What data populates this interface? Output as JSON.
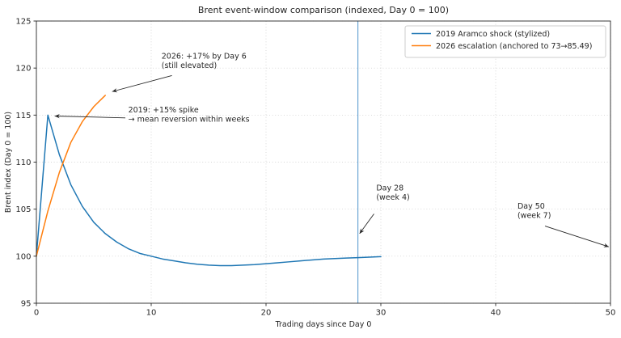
{
  "figure": {
    "title": "Brent event-window comparison (indexed, Day 0 = 100)"
  },
  "colors": {
    "series_2019": "#1f77b4",
    "series_2026": "#ff7f0e",
    "event_vline": "#5f9ed1",
    "grid": "#b5b5b5",
    "axis": "#262626",
    "legend_border": "#cccccc",
    "background": "#ffffff"
  },
  "chart_data": {
    "type": "line",
    "title": "Brent event-window comparison (indexed, Day 0 = 100)",
    "xlabel": "Trading days since Day 0",
    "ylabel": "Brent index (Day 0 = 100)",
    "xlim": [
      0,
      50
    ],
    "ylim": [
      95,
      125
    ],
    "xticks": [
      0,
      10,
      20,
      30,
      40,
      50
    ],
    "yticks": [
      95,
      100,
      105,
      110,
      115,
      120,
      125
    ],
    "grid": true,
    "legend_position": "upper right",
    "series": [
      {
        "name": "2019 Aramco shock (stylized)",
        "color": "#1f77b4",
        "x": [
          0,
          1,
          2,
          3,
          4,
          5,
          6,
          7,
          8,
          9,
          10,
          11,
          12,
          13,
          14,
          15,
          16,
          17,
          18,
          19,
          20,
          21,
          22,
          23,
          24,
          25,
          26,
          27,
          28,
          29,
          30
        ],
        "y": [
          100,
          115,
          110.8,
          107.6,
          105.3,
          103.6,
          102.4,
          101.5,
          100.8,
          100.3,
          100.0,
          99.7,
          99.5,
          99.3,
          99.15,
          99.05,
          99.0,
          99.0,
          99.05,
          99.1,
          99.2,
          99.3,
          99.4,
          99.5,
          99.6,
          99.7,
          99.75,
          99.8,
          99.85,
          99.9,
          99.95
        ]
      },
      {
        "name": "2026 escalation (anchored to 73→85.49)",
        "color": "#ff7f0e",
        "x": [
          0,
          1,
          2,
          3,
          4,
          5,
          6
        ],
        "y": [
          100,
          104.8,
          108.9,
          112.1,
          114.3,
          115.9,
          117.1
        ]
      }
    ],
    "vline": {
      "x": 28,
      "color": "#5f9ed1"
    },
    "annotations": [
      {
        "lines": [
          "2026: +17% by Day 6",
          "(still elevated)"
        ],
        "text_xy": [
          10.9,
          121.0
        ],
        "arrow_from": [
          11.8,
          119.2
        ],
        "arrow_to": [
          6.6,
          117.5
        ]
      },
      {
        "lines": [
          "2019: +15% spike",
          "→ mean reversion within weeks"
        ],
        "text_xy": [
          8.0,
          115.3
        ],
        "arrow_from": [
          7.75,
          114.7
        ],
        "arrow_to": [
          1.6,
          114.9
        ]
      },
      {
        "lines": [
          "Day 28",
          "(week 4)"
        ],
        "text_xy": [
          29.6,
          107.0
        ],
        "arrow_from": [
          29.4,
          104.5
        ],
        "arrow_to": [
          28.15,
          102.4
        ]
      },
      {
        "lines": [
          "Day 50",
          "(week 7)"
        ],
        "text_xy": [
          41.9,
          105.05
        ],
        "arrow_from": [
          44.3,
          103.2
        ],
        "arrow_to": [
          49.85,
          101.0
        ]
      }
    ]
  }
}
